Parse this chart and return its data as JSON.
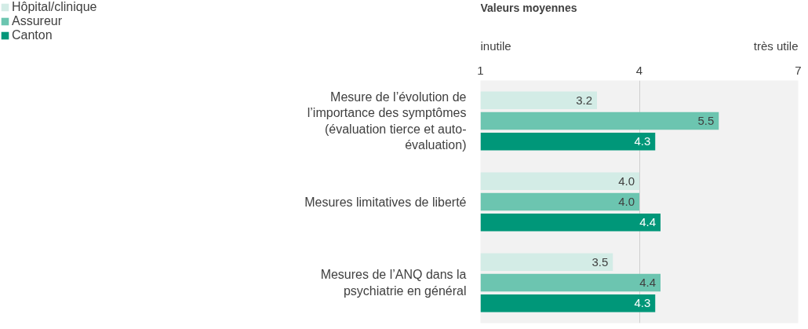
{
  "chart_data": {
    "type": "bar",
    "orientation": "horizontal",
    "title": "Valeurs moyennes",
    "categories": [
      "Mesure de l’évolution de l’importance des symptômes (évaluation tierce et auto-évaluation)",
      "Mesures limitatives de liberté",
      "Mesures de l’ANQ dans la psychiatrie en général"
    ],
    "series": [
      {
        "name": "Hôpital/clinique",
        "color": "#d3ece6",
        "values": [
          3.2,
          4.0,
          3.5
        ],
        "value_labels": [
          "3.2",
          "4.0",
          "3.5"
        ]
      },
      {
        "name": "Assureur",
        "color": "#6cc5b0",
        "values": [
          5.5,
          4.0,
          4.4
        ],
        "value_labels": [
          "5.5",
          "4.0",
          "4.4"
        ]
      },
      {
        "name": "Canton",
        "color": "#009779",
        "values": [
          4.3,
          4.4,
          4.3
        ],
        "value_labels": [
          "4.3",
          "4.4",
          "4.3"
        ]
      }
    ],
    "xlim": [
      1,
      7
    ],
    "xticks": [
      1,
      4,
      7
    ],
    "annotations": [
      "inutile",
      "très utile"
    ],
    "grid": "x",
    "legend": "top left"
  }
}
